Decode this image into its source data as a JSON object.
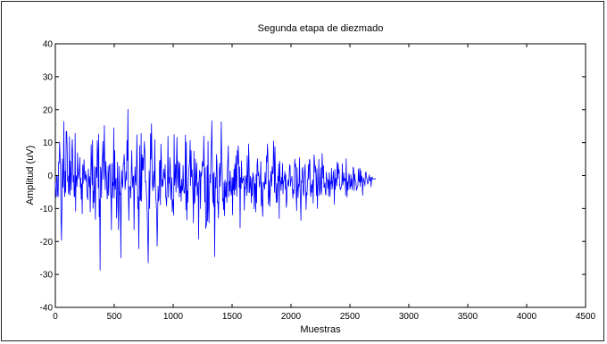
{
  "chart_data": {
    "type": "line",
    "title": "Segunda etapa de diezmado",
    "xlabel": "Muestras",
    "ylabel": "Amplitud  (uV)",
    "xlim": [
      0,
      4500
    ],
    "ylim": [
      -40,
      40
    ],
    "x_ticks": [
      0,
      500,
      1000,
      1500,
      2000,
      2500,
      3000,
      3500,
      4000,
      4500
    ],
    "y_ticks": [
      -40,
      -30,
      -20,
      -10,
      0,
      10,
      20,
      30,
      40
    ],
    "x_tick_labels": [
      "0",
      "500",
      "1000",
      "1500",
      "2000",
      "2500",
      "3000",
      "3500",
      "4000",
      "4500"
    ],
    "y_tick_labels": [
      "-40",
      "-30",
      "-20",
      "-10",
      "0",
      "10",
      "20",
      "30",
      "40"
    ],
    "grid": false,
    "series": [
      {
        "color": "#0000ff",
        "x_start": 0,
        "x_step": 4,
        "values": [
          -2.0,
          -5.7,
          -6.5,
          0.1,
          -0.0,
          -5.9,
          -6.4,
          4.2,
          3.7,
          10.2,
          5.5,
          3.3,
          -13.0,
          -19.7,
          -9.0,
          5.0,
          -3.6,
          0.0,
          16.4,
          -3.5,
          -6.4,
          1.4,
          -5.1,
          13.4,
          13.4,
          9.2,
          -1.8,
          -0.1,
          -5.6,
          -4.7,
          11.8,
          -6.0,
          4.4,
          -0.4,
          -4.4,
          7.5,
          10.9,
          4.3,
          -2.0,
          0.0,
          -6.4,
          -6.4,
          12.8,
          -10.8,
          -0.0,
          -0.7,
          -3.3,
          6.9,
          1.6,
          -1.0,
          0.4,
          1.7,
          5.5,
          -3.6,
          -0.7,
          -7.2,
          -2.5,
          -11.6,
          3.2,
          -2.4,
          2.6,
          4.8,
          -1.3,
          -0.7,
          1.4,
          -1.7,
          0.1,
          -6.1,
          -6.5,
          -7.3,
          2.0,
          -1.3,
          -3.4,
          -0.3,
          -11.0,
          -2.3,
          9.4,
          4.1,
          -2.8,
          10.7,
          -9.9,
          -4.7,
          -8.1,
          2.8,
          -4.2,
          -13.3,
          2.3,
          2.5,
          -0.6,
          10.6,
          7.5,
          -3.8,
          12.6,
          -12.5,
          -7.2,
          -28.7,
          2.6,
          1.4,
          -6.7,
          3.7,
          5.8,
          10.4,
          -1.1,
          4.7,
          15.2,
          2.6,
          -4.3,
          4.3,
          1.0,
          -2.7,
          -7.1,
          -4.9,
          2.9,
          -6.0,
          1.2,
          3.2,
          3.5,
          -5.1,
          -7.0,
          -16.5,
          3.7,
          -6.7,
          -2.1,
          -3.0,
          14.5,
          -6.8,
          7.6,
          -4.2,
          -1.8,
          -0.8,
          -12.9,
          -8.0,
          4.1,
          -1.4,
          -16.4,
          -9.8,
          2.8,
          -5.8,
          -5.3,
          -25.0,
          -4.9,
          1.5,
          -2.5,
          -3.6,
          3.6,
          3.5,
          6.4,
          2.8,
          -4.2,
          -2.2,
          1.1,
          -1.4,
          10.6,
          4.6,
          20.1,
          -5.4,
          -13.6,
          -3.3,
          -3.4,
          -3.6,
          -6.8,
          -0.4,
          7.6,
          1.0,
          -3.6,
          -0.6,
          -0.1,
          -16.4,
          -4.3,
          2.6,
          -1.5,
          -2.9,
          1.8,
          12.4,
          0.2,
          -10.1,
          -6.4,
          -22.2,
          -7.4,
          9.1,
          -7.6,
          -7.2,
          12.8,
          -7.8,
          6.3,
          1.8,
          5.4,
          1.6,
          6.6,
          10.3,
          6.7,
          -2.0,
          -1.7,
          -4.4,
          -8.0,
          -11.9,
          -18.2,
          -26.5,
          -14.5,
          1.5,
          -10.0,
          -0.4,
          12.7,
          5.0,
          15.7,
          5.5,
          -3.0,
          -4.6,
          -0.5,
          1.3,
          -3.5,
          10.9,
          -2.7,
          -5.9,
          -8.3,
          -11.4,
          -21.4,
          -14.0,
          -3.2,
          -7.7,
          -6.9,
          4.1,
          4.7,
          -8.9,
          9.6,
          4.8,
          -3.4,
          -1.1,
          -3.2,
          -1.7,
          2.0,
          -0.1,
          -0.9,
          3.3,
          -6.5,
          -6.9,
          -9.2,
          -4.0,
          -0.6,
          11.9,
          -6.6,
          -0.5,
          -2.3,
          5.5,
          2.6,
          -7.2,
          -3.1,
          -0.6,
          -11.0,
          -7.3,
          -8.6,
          -12.1,
          12.4,
          -2.9,
          -0.2,
          3.5,
          -5.0,
          4.6,
          11.6,
          -0.5,
          -3.7,
          4.4,
          3.1,
          -6.5,
          3.8,
          -5.2,
          -3.2,
          -7.8,
          -1.1,
          -4.7,
          -4.1,
          3.1,
          -2.7,
          -5.3,
          -5.3,
          -3.4,
          12.3,
          -10.4,
          10.2,
          -13.5,
          -4.7,
          -8.1,
          -2.6,
          0.9,
          3.1,
          4.1,
          10.7,
          -3.1,
          7.6,
          -0.4,
          1.8,
          -1.4,
          -6.4,
          -14.3,
          7.4,
          -8.5,
          -7.8,
          5.0,
          -3.2,
          -0.3,
          3.8,
          -6.1,
          -4.3,
          -2.0,
          -19.3,
          -2.1,
          1.6,
          0.3,
          -10.0,
          1.1,
          -0.2,
          1.5,
          4.3,
          2.9,
          2.9,
          12.0,
          2.8,
          -8.0,
          2.4,
          -16.0,
          -15.2,
          -14.6,
          3.0,
          -13.8,
          10.4,
          -9.8,
          -14.3,
          -4.8,
          0.3,
          -2.2,
          4.9,
          9.3,
          16.6,
          4.2,
          -8.3,
          0.6,
          -9.4,
          1.0,
          -24.6,
          -7.4,
          -0.5,
          -3.8,
          6.4,
          3.6,
          -8.3,
          -7.9,
          -12.9,
          -5.4,
          2.2,
          3.8,
          -3.3,
          1.3,
          16.3,
          6.4,
          2.6,
          -7.7,
          -7.0,
          -10.4,
          -2.0,
          -12.2,
          -1.3,
          -5.9,
          -6.6,
          -2.0,
          -8.2,
          1.8,
          4.7,
          9.0,
          -6.4,
          -1.8,
          -4.7,
          1.4,
          -3.2,
          -6.0,
          -4.9,
          -0.5,
          -11.9,
          -0.7,
          -4.4,
          2.0,
          -5.8,
          3.5,
          -4.3,
          6.0,
          -1.6,
          -6.3,
          7.6,
          3.5,
          9.0,
          4.6,
          -3.6,
          2.6,
          -15.9,
          -0.6,
          -3.9,
          4.4,
          -2.1,
          -2.3,
          -0.9,
          -1.4,
          -0.2,
          -10.5,
          -3.5,
          -3.9,
          -0.0,
          -1.3,
          -6.1,
          6.0,
          -0.0,
          -5.1,
          9.6,
          4.5,
          -5.2,
          -3.5,
          -0.2,
          -3.8,
          -8.3,
          -0.7,
          -6.1,
          0.9,
          -0.1,
          -0.6,
          -10.1,
          -2.4,
          -2.8,
          -11.1,
          0.4,
          -8.3,
          3.1,
          5.1,
          -0.1,
          1.0,
          -0.4,
          -3.5,
          -2.3,
          0.0,
          4.3,
          -9.2,
          -2.0,
          -8.7,
          -12.4,
          -4.1,
          -2.0,
          -2.4,
          -4.1,
          1.0,
          -2.4,
          -2.6,
          6.0,
          4.1,
          9.6,
          6.4,
          -8.8,
          -6.5,
          -1.5,
          -9.4,
          -5.0,
          1.3,
          -1.1,
          -3.2,
          2.7,
          0.5,
          0.8,
          10.5,
          5.9,
          -5.1,
          8.8,
          -1.0,
          -5.5,
          -8.2,
          -2.4,
          -8.1,
          -0.2,
          -1.7,
          3.6,
          -13.0,
          4.4,
          -1.3,
          -1.9,
          -4.5,
          -0.5,
          -2.5,
          3.7,
          -5.6,
          -2.0,
          -1.6,
          -0.4,
          1.3,
          -4.2,
          0.3,
          -9.7,
          -8.2,
          -3.4,
          -2.6,
          -1.3,
          -3.2,
          -0.4,
          3.3,
          2.9,
          -3.2,
          -1.5,
          -1.4,
          -0.2,
          -3.8,
          -6.9,
          -4.2,
          -5.5,
          -1.2,
          5.0,
          2.6,
          3.5,
          -6.3,
          -10.6,
          2.4,
          -3.6,
          -6.7,
          -2.6,
          -3.3,
          5.4,
          -3.0,
          -7.4,
          -13.6,
          -1.6,
          -2.2,
          2.0,
          2.5,
          -5.3,
          -6.1,
          -2.0,
          1.2,
          3.4,
          -4.4,
          -10.3,
          -5.2,
          -5.9,
          -1.2,
          -1.4,
          3.3,
          -1.0,
          4.9,
          4.5,
          -4.4,
          -6.4,
          -2.8,
          -5.1,
          -2.4,
          -1.3,
          -8.4,
          -1.2,
          6.3,
          4.1,
          1.0,
          2.9,
          -0.1,
          -6.1,
          2.1,
          -10.0,
          -3.0,
          -2.5,
          4.9,
          -6.0,
          -4.5,
          -2.2,
          2.4,
          -5.8,
          -4.6,
          6.7,
          2.7,
          -0.8,
          3.0,
          -3.6,
          -3.5,
          -2.2,
          -5.4,
          -5.9,
          1.1,
          -0.9,
          -1.0,
          -3.9,
          -1.3,
          -6.3,
          0.9,
          -1.7,
          -6.3,
          -1.8,
          -2.4,
          2.2,
          -4.1,
          -3.0,
          -0.6,
          1.3,
          -1.9,
          -8.7,
          1.9,
          -4.2,
          -0.9,
          -0.9,
          -3.1,
          4.1,
          -0.9,
          3.7,
          0.7,
          1.8,
          -2.6,
          -3.6,
          -4.3,
          -3.8,
          -3.1,
          -2.1,
          3.6,
          -2.9,
          -1.6,
          0.8,
          -1.7,
          -1.0,
          -0.9,
          -6.0,
          5.1,
          -1.3,
          -6.5,
          -1.8,
          -4.4,
          -1.7,
          0.6,
          -0.5,
          -4.1,
          -3.3,
          0.3,
          -3.2,
          -1.1,
          -4.3,
          -1.2,
          2.6,
          1.9,
          -4.6,
          0.5,
          -1.1,
          -1.9,
          -2.3,
          -4.5,
          -4.0,
          -3.2,
          -3.0,
          2.0,
          -1.4,
          -2.0,
          2.3,
          -3.3,
          1.6,
          -2.0,
          -0.1,
          -1.0,
          -6.0,
          -2.4,
          -0.7,
          -1.6,
          -2.1,
          -3.1,
          0.7,
          1.1,
          -0.5,
          -1.0,
          -2.1,
          -2.6,
          -1.6,
          -0.6,
          0.2,
          -1.6,
          -1.6,
          -0.5,
          -3.4,
          -1.1,
          -0.4,
          -1.1,
          -0.9,
          -1.0,
          -1.0,
          -1.0,
          -1.0,
          -1.0,
          -1.0
        ]
      }
    ]
  }
}
